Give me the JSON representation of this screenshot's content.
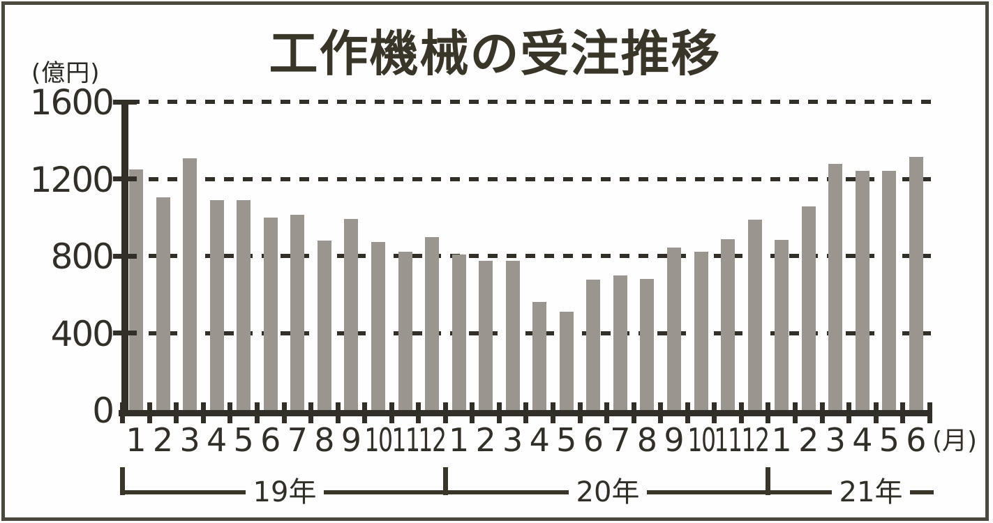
{
  "title": "工作機械の受注推移",
  "y_axis": {
    "unit_label": "(億円)",
    "tick_labels": [
      "1600",
      "1200",
      "800",
      "400",
      "0"
    ],
    "tick_values": [
      1600,
      1200,
      800,
      400,
      0
    ]
  },
  "x_axis": {
    "suffix_label": "(月)"
  },
  "chart_data": {
    "type": "bar",
    "title": "工作機械の受注推移",
    "ylabel": "(億円)",
    "ylim": [
      0,
      1600
    ],
    "y_gridlines": [
      400,
      800,
      1200,
      1600
    ],
    "grid": "dashed-horizontal",
    "legend_position": "none",
    "categories": [
      "1",
      "2",
      "3",
      "4",
      "5",
      "6",
      "7",
      "8",
      "9",
      "10",
      "11",
      "12",
      "1",
      "2",
      "3",
      "4",
      "5",
      "6",
      "7",
      "8",
      "9",
      "10",
      "11",
      "12",
      "1",
      "2",
      "3",
      "4",
      "5",
      "6"
    ],
    "category_groups": [
      {
        "label": "19年",
        "start_index": 0,
        "end_index": 11
      },
      {
        "label": "20年",
        "start_index": 12,
        "end_index": 23
      },
      {
        "label": "21年",
        "start_index": 24,
        "end_index": 29
      }
    ],
    "x_unit_suffix": "(月)",
    "values": [
      1248,
      1104,
      1306,
      1090,
      1088,
      999,
      1012,
      880,
      992,
      872,
      822,
      897,
      808,
      773,
      774,
      561,
      512,
      676,
      700,
      680,
      845,
      822,
      886,
      990,
      884,
      1056,
      1278,
      1243,
      1240,
      1313
    ]
  },
  "colors": {
    "bar": "#9a968f",
    "ink": "#312f28",
    "axis": "#393629",
    "frame_border": "#4b493e",
    "background": "#ffffff"
  }
}
